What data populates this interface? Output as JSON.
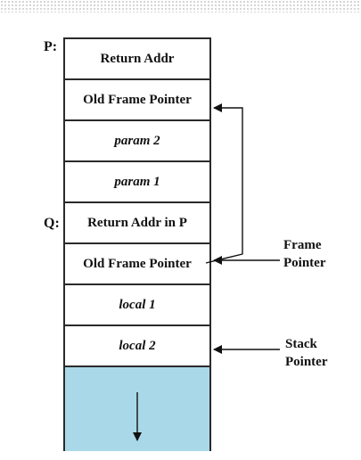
{
  "labels": {
    "p": "P:",
    "q": "Q:"
  },
  "cells": [
    {
      "text": "Return Addr",
      "italic": false
    },
    {
      "text": "Old Frame Pointer",
      "italic": false
    },
    {
      "text": "param 2",
      "italic": true
    },
    {
      "text": "param 1",
      "italic": true
    },
    {
      "text": "Return Addr in P",
      "italic": false
    },
    {
      "text": "Old Frame Pointer",
      "italic": false
    },
    {
      "text": "local 1",
      "italic": true
    },
    {
      "text": "local 2",
      "italic": true
    }
  ],
  "annotations": {
    "frame_pointer": [
      "Frame",
      "Pointer"
    ],
    "stack_pointer": [
      "Stack",
      "Pointer"
    ]
  },
  "colors": {
    "free_space": "#a9d9e8",
    "border": "#2a2a2a"
  }
}
